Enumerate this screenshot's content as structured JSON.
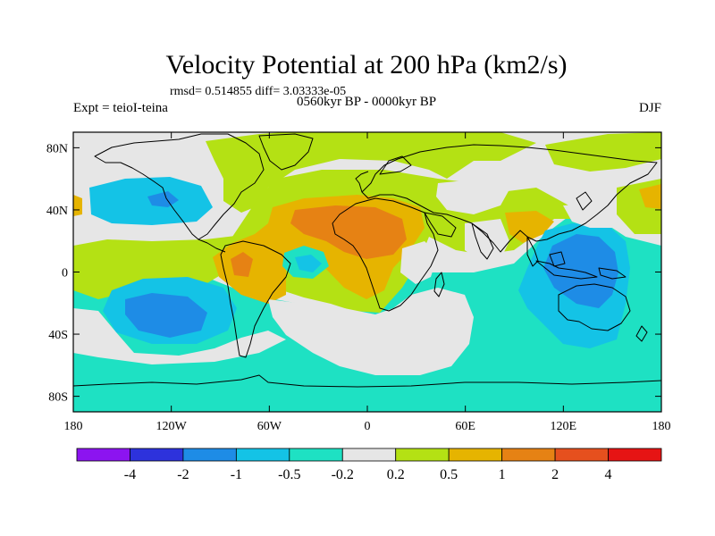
{
  "title": "Velocity Potential at 200 hPa (km2/s)",
  "stats": "rmsd= 0.514855  diff= 3.03333e-05",
  "left_label": "Expt = teioI-teina",
  "center_label": "0560kyr BP - 0000kyr BP",
  "right_label": "DJF",
  "chart_data": {
    "type": "heatmap",
    "projection": "cylindrical-equidistant",
    "lon_range": [
      -180,
      180
    ],
    "lat_range": [
      -90,
      90
    ],
    "lon_ticks": [
      {
        "value": -180,
        "label": "180"
      },
      {
        "value": -120,
        "label": "120W"
      },
      {
        "value": -60,
        "label": "60W"
      },
      {
        "value": 0,
        "label": "0"
      },
      {
        "value": 60,
        "label": "60E"
      },
      {
        "value": 120,
        "label": "120E"
      },
      {
        "value": 180,
        "label": "180"
      }
    ],
    "lat_ticks": [
      {
        "value": 80,
        "label": "80N"
      },
      {
        "value": 40,
        "label": "40N"
      },
      {
        "value": 0,
        "label": "0"
      },
      {
        "value": -40,
        "label": "40S"
      },
      {
        "value": -80,
        "label": "80S"
      }
    ],
    "colorbar": {
      "labels": [
        "-4",
        "-2",
        "-1",
        "-0.5",
        "-0.2",
        "0.2",
        "0.5",
        "1",
        "2",
        "4"
      ],
      "colors": [
        "#8c14f0",
        "#2d32dc",
        "#1e8ce6",
        "#14c3e6",
        "#1ee1c3",
        "#e6e6e6",
        "#b4e114",
        "#e6b400",
        "#e68214",
        "#e6501e",
        "#e61414"
      ]
    },
    "field_colors": {
      "neg_0_5_to_0_2": "#1ee1c3",
      "neg_1_to_0_5": "#14c3e6",
      "neg_2_to_1": "#1e8ce6",
      "near_zero": "#e6e6e6",
      "pos_0_2_to_0_5": "#b4e114",
      "pos_0_5_to_1": "#e6b400",
      "pos_1_to_2": "#e68214"
    }
  }
}
